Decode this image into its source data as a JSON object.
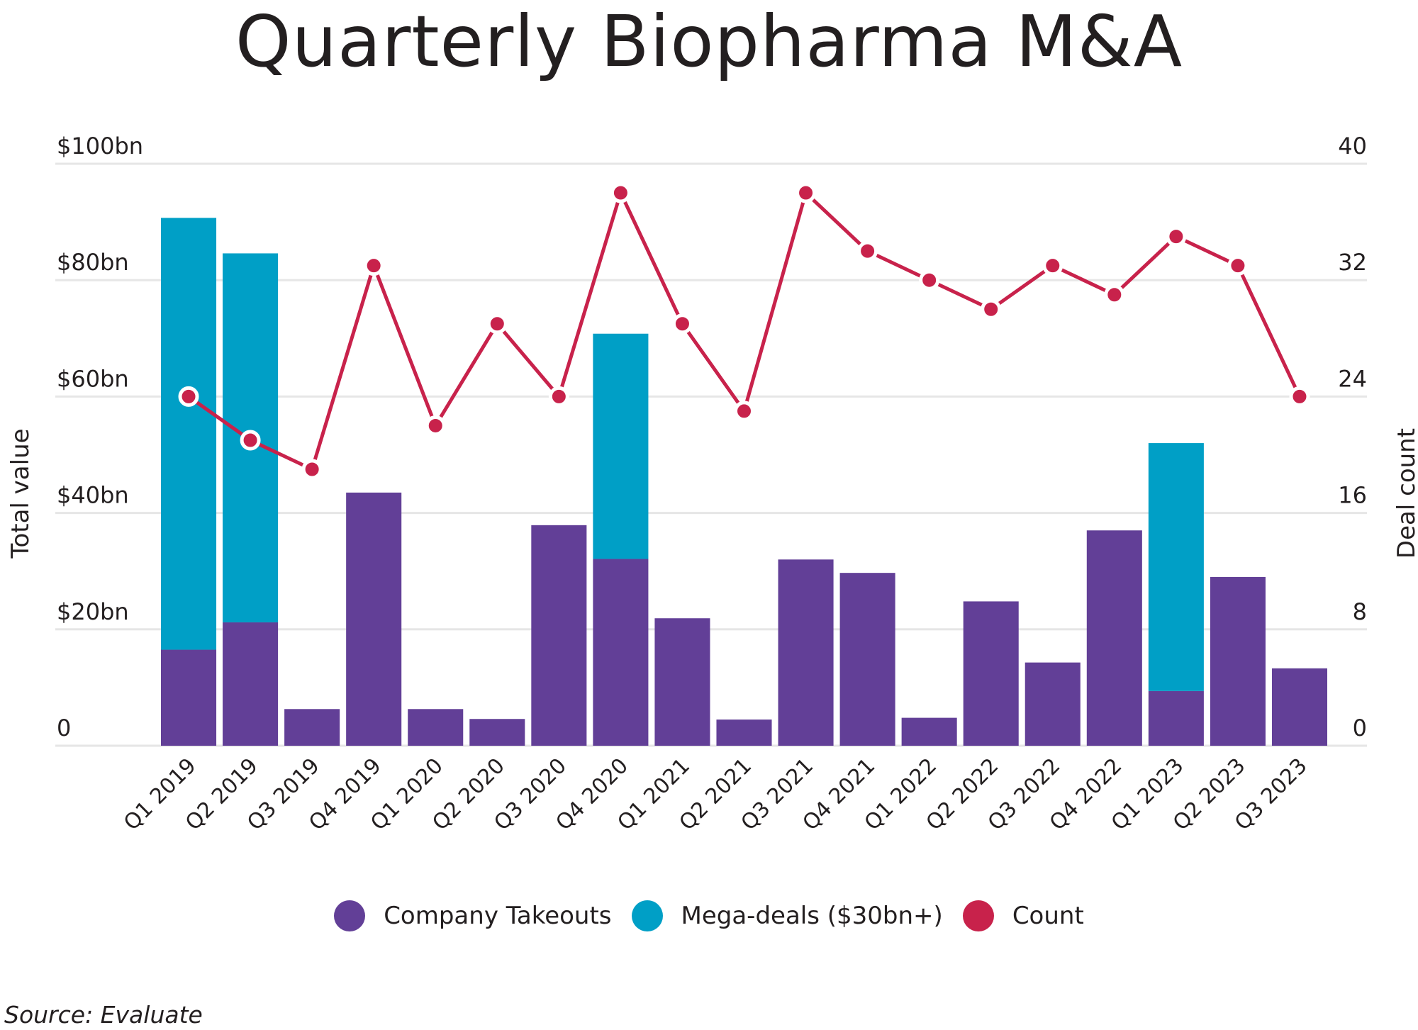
{
  "chart_data": {
    "type": "bar",
    "subtype": "stacked bar with line on secondary axis",
    "title": "Quarterly Biopharma M&A",
    "categories": [
      "Q1 2019",
      "Q2 2019",
      "Q3 2019",
      "Q4 2019",
      "Q1 2020",
      "Q2 2020",
      "Q3 2020",
      "Q4 2020",
      "Q1 2021",
      "Q2 2021",
      "Q3 2021",
      "Q4 2021",
      "Q1 2022",
      "Q2 2022",
      "Q3 2022",
      "Q4 2022",
      "Q1 2023",
      "Q2 2023",
      "Q3 2023"
    ],
    "series": [
      {
        "name": "Company Takeouts",
        "type": "bar",
        "axis": "left",
        "color": "#623f97",
        "values": [
          16.5,
          21.2,
          6.3,
          43.5,
          6.3,
          4.6,
          37.9,
          32.1,
          21.9,
          4.5,
          32.0,
          29.7,
          4.8,
          24.8,
          14.3,
          37.0,
          9.4,
          29.0,
          13.3
        ]
      },
      {
        "name": "Mega-deals ($30bn+)",
        "type": "bar",
        "axis": "left",
        "color": "#009fc6",
        "values": [
          74.2,
          63.4,
          0,
          0,
          0,
          0,
          0,
          38.7,
          0,
          0,
          0,
          0,
          0,
          0,
          0,
          0,
          42.6,
          0,
          0
        ]
      },
      {
        "name": "Count",
        "type": "line",
        "axis": "right",
        "color": "#c8224b",
        "values": [
          24,
          21,
          19,
          33,
          22,
          29,
          24,
          38,
          29,
          23,
          38,
          34,
          32,
          30,
          33,
          31,
          35,
          33,
          24
        ]
      }
    ],
    "ylabel": "Total value",
    "ylabel_right": "Deal count",
    "xlabel": "",
    "ylim": [
      0,
      100
    ],
    "ylim_right": [
      0,
      40
    ],
    "yticks": [
      "0",
      "$20bn",
      "$40bn",
      "$60bn",
      "$80bn",
      "$100bn"
    ],
    "ytick_values": [
      0,
      20,
      40,
      60,
      80,
      100
    ],
    "yticks_right": [
      "0",
      "8",
      "16",
      "24",
      "32",
      "40"
    ],
    "ytick_values_right": [
      0,
      8,
      16,
      24,
      32,
      40
    ],
    "grid": true,
    "legend_position": "bottom-center",
    "source": "Source: Evaluate"
  },
  "legend": [
    {
      "label": "Company Takeouts",
      "color": "#623f97"
    },
    {
      "label": "Mega-deals ($30bn+)",
      "color": "#009fc6"
    },
    {
      "label": "Count",
      "color": "#c8224b"
    }
  ],
  "gridline_color": "#e6e6e6"
}
